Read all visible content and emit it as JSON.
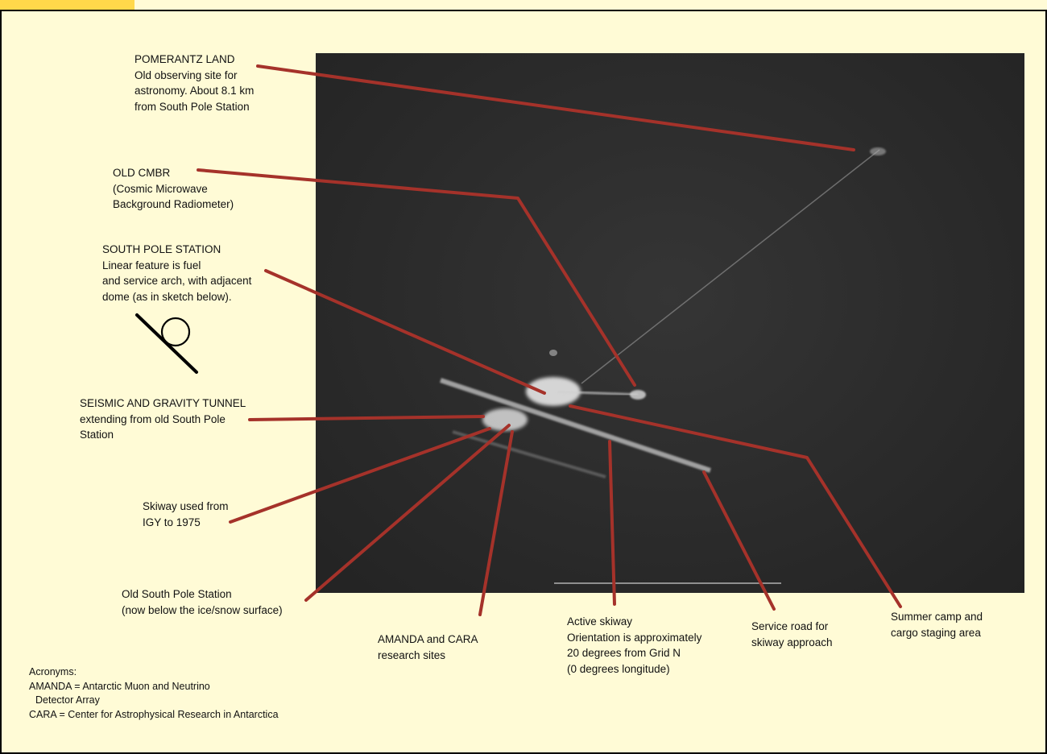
{
  "colors": {
    "background": "#fffbd6",
    "tab": "#ffd84a",
    "leader_line": "#a5322a",
    "photo": "#2b2b2b"
  },
  "image": {
    "description_icon": "satellite-photo"
  },
  "labels": {
    "pomerantz": [
      "POMERANTZ LAND",
      "Old observing site for",
      "astronomy. About 8.1 km",
      "from South Pole Station"
    ],
    "cmbr": [
      "OLD CMBR",
      "(Cosmic Microwave",
      "Background Radiometer)"
    ],
    "station": [
      "SOUTH POLE STATION",
      "Linear feature is fuel",
      "and service arch, with adjacent",
      "dome (as in sketch below)."
    ],
    "seismic": [
      "SEISMIC AND GRAVITY TUNNEL",
      "extending from old South Pole",
      "Station"
    ],
    "skiway_old": [
      "Skiway used from",
      "IGY to 1975"
    ],
    "old_station": [
      "Old South Pole Station",
      "(now below the ice/snow surface)"
    ],
    "amanda": [
      "AMANDA and CARA",
      "research sites"
    ],
    "active_skiway": [
      "Active skiway",
      "Orientation is approximately",
      "20 degrees from Grid N",
      "(0 degrees longitude)"
    ],
    "service_road": [
      "Service road for",
      "skiway approach"
    ],
    "summer_camp": [
      "Summer camp and",
      "cargo staging area"
    ]
  },
  "acronyms": [
    "Acronyms:",
    "AMANDA = Antarctic Muon and Neutrino",
    "  Detector Array",
    "CARA = Center for Astrophysical Research in Antarctica"
  ]
}
